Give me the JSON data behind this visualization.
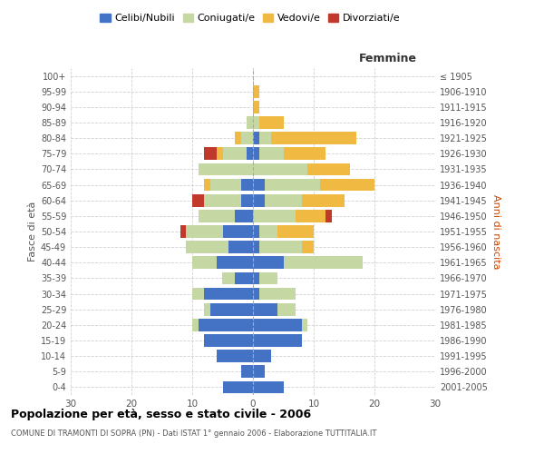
{
  "age_groups": [
    "0-4",
    "5-9",
    "10-14",
    "15-19",
    "20-24",
    "25-29",
    "30-34",
    "35-39",
    "40-44",
    "45-49",
    "50-54",
    "55-59",
    "60-64",
    "65-69",
    "70-74",
    "75-79",
    "80-84",
    "85-89",
    "90-94",
    "95-99",
    "100+"
  ],
  "birth_years": [
    "2001-2005",
    "1996-2000",
    "1991-1995",
    "1986-1990",
    "1981-1985",
    "1976-1980",
    "1971-1975",
    "1966-1970",
    "1961-1965",
    "1956-1960",
    "1951-1955",
    "1946-1950",
    "1941-1945",
    "1936-1940",
    "1931-1935",
    "1926-1930",
    "1921-1925",
    "1916-1920",
    "1911-1915",
    "1906-1910",
    "≤ 1905"
  ],
  "male": {
    "celibi": [
      5,
      2,
      6,
      8,
      9,
      7,
      8,
      3,
      6,
      4,
      5,
      3,
      2,
      2,
      0,
      1,
      0,
      0,
      0,
      0,
      0
    ],
    "coniugati": [
      0,
      0,
      0,
      0,
      1,
      1,
      2,
      2,
      4,
      7,
      6,
      6,
      6,
      5,
      9,
      4,
      2,
      1,
      0,
      0,
      0
    ],
    "vedovi": [
      0,
      0,
      0,
      0,
      0,
      0,
      0,
      0,
      0,
      0,
      0,
      0,
      0,
      1,
      0,
      1,
      1,
      0,
      0,
      0,
      0
    ],
    "divorziati": [
      0,
      0,
      0,
      0,
      0,
      0,
      0,
      0,
      0,
      0,
      1,
      0,
      2,
      0,
      0,
      2,
      0,
      0,
      0,
      0,
      0
    ]
  },
  "female": {
    "nubili": [
      5,
      2,
      3,
      8,
      8,
      4,
      1,
      1,
      5,
      1,
      1,
      0,
      2,
      2,
      0,
      1,
      1,
      0,
      0,
      0,
      0
    ],
    "coniugate": [
      0,
      0,
      0,
      0,
      1,
      3,
      6,
      3,
      13,
      7,
      3,
      7,
      6,
      9,
      9,
      4,
      2,
      1,
      0,
      0,
      0
    ],
    "vedove": [
      0,
      0,
      0,
      0,
      0,
      0,
      0,
      0,
      0,
      2,
      6,
      5,
      7,
      9,
      7,
      7,
      14,
      4,
      1,
      1,
      0
    ],
    "divorziate": [
      0,
      0,
      0,
      0,
      0,
      0,
      0,
      0,
      0,
      0,
      0,
      1,
      0,
      0,
      0,
      0,
      0,
      0,
      0,
      0,
      0
    ]
  },
  "colors": {
    "celibi": "#4472c4",
    "coniugati": "#c5d8a4",
    "vedovi": "#f0b942",
    "divorziati": "#c0392b"
  },
  "xlim": 30,
  "title": "Popolazione per età, sesso e stato civile - 2006",
  "subtitle": "COMUNE DI TRAMONTI DI SOPRA (PN) - Dati ISTAT 1° gennaio 2006 - Elaborazione TUTTITALIA.IT",
  "ylabel_left": "Fasce di età",
  "ylabel_right": "Anni di nascita",
  "xlabel_right": "Femmine",
  "bg_color": "#ffffff",
  "grid_color": "#cccccc"
}
